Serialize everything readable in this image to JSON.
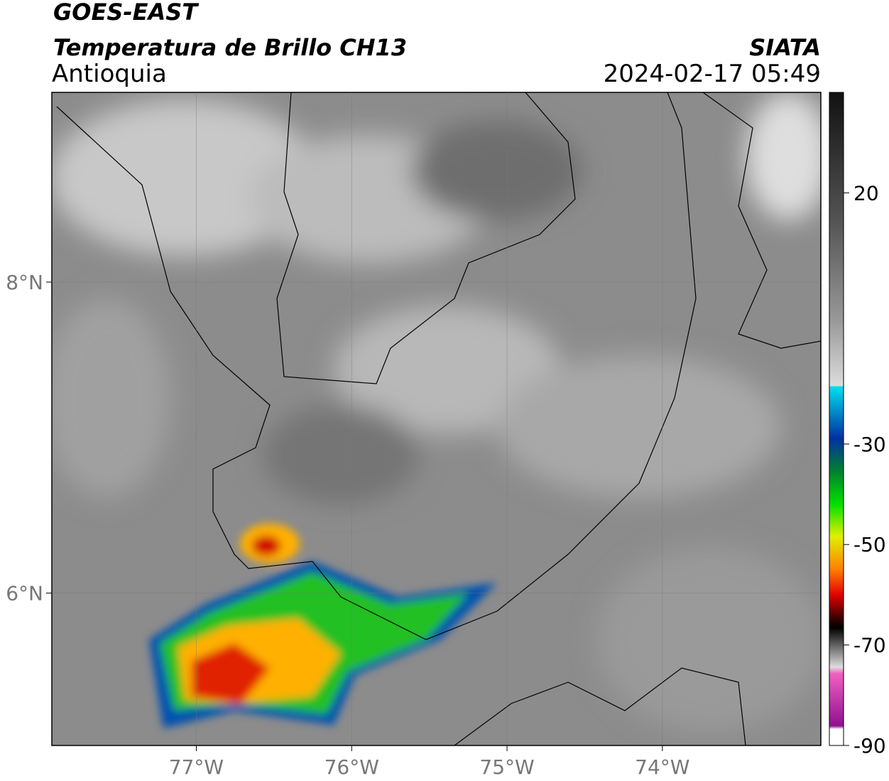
{
  "header": {
    "title": "GOES-EAST",
    "subtitle": "Temperatura de Brillo CH13",
    "region": "Antioquia",
    "source": "SIATA",
    "datetime": "2024-02-17 05:49"
  },
  "map": {
    "lon_range": [
      -77.93,
      -72.98
    ],
    "lat_range": [
      5.02,
      9.22
    ],
    "lon_ticks": [
      {
        "value": -77,
        "label": "77°W"
      },
      {
        "value": -76,
        "label": "76°W"
      },
      {
        "value": -75,
        "label": "75°W"
      },
      {
        "value": -74,
        "label": "74°W"
      }
    ],
    "lat_ticks": [
      {
        "value": 8,
        "label": "8°N"
      },
      {
        "value": 6,
        "label": "6°N"
      }
    ]
  },
  "colorbar": {
    "range": [
      -90,
      40
    ],
    "ticks": [
      20,
      -30,
      -50,
      -70,
      -90
    ]
  }
}
